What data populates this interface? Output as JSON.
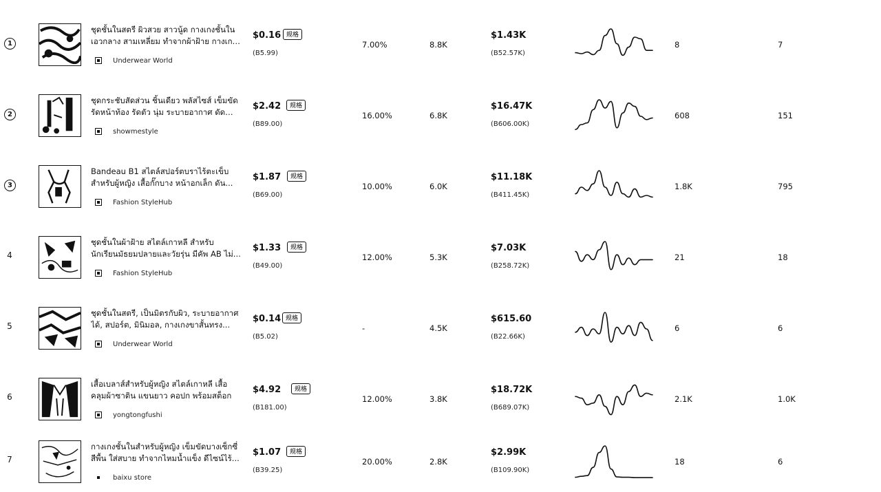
{
  "rows": [
    {
      "rank": "1",
      "title": "ชุดชั้นในสตรี ผิวสวย สาวนู้ด กางเกงชั้นใน เอวกลาง สามเหลี่ยม ทำจากผ้าฝ้าย กางเกงชั้นใน",
      "shop_name": "Underwear World",
      "price": "$0.16",
      "price_badge": "规格",
      "price_local": "(B5.99)",
      "commission_rate": "7.00%",
      "sales": "8.8K",
      "revenue": "$1.43K",
      "revenue_local": "(B52.57K)",
      "metric_a": "8",
      "metric_b": "7",
      "trend": [
        0.28,
        0.25,
        0.3,
        0.22,
        0.35,
        0.8,
        1.0,
        0.55,
        0.2,
        0.45,
        0.75,
        0.7,
        0.35,
        0.35
      ]
    },
    {
      "rank": "2",
      "title": "ชุดกระชับสัดส่วน ชิ้นเดียว พลัสไซส์ เข็มขัด รัดหน้าท้อง รัดตัว นุ่ม ระบายอากาศ ดัดมีดิ...",
      "shop_name": "showmestyle",
      "price": "$2.42",
      "price_badge": "规格",
      "price_local": "(B89.00)",
      "commission_rate": "16.00%",
      "sales": "6.8K",
      "revenue": "$16.47K",
      "revenue_local": "(B606.00K)",
      "metric_a": "608",
      "metric_b": "151",
      "trend": [
        0.1,
        0.25,
        0.3,
        0.7,
        1.0,
        0.75,
        0.95,
        0.15,
        0.6,
        0.9,
        0.8,
        0.5,
        0.4,
        0.45
      ]
    },
    {
      "rank": "3",
      "title": "Bandeau B1 สไตล์สปอร์ตบราไร้ตะเข็บ สำหรับผู้หญิง เสื้อกั๊กบาง หน้าอกเล็ก ดัน...",
      "shop_name": "Fashion StyleHub",
      "price": "$1.87",
      "price_badge": "规格",
      "price_local": "(B69.00)",
      "commission_rate": "10.00%",
      "sales": "6.0K",
      "revenue": "$11.18K",
      "revenue_local": "(B411.45K)",
      "metric_a": "1.8K",
      "metric_b": "795",
      "trend": [
        0.3,
        0.5,
        0.4,
        0.6,
        1.0,
        0.5,
        0.25,
        0.65,
        0.3,
        0.2,
        0.45,
        0.2,
        0.25,
        0.2
      ]
    },
    {
      "rank": "4",
      "title": "ชุดชั้นในผ้าฝ้าย สไตล์เกาหลี สำหรับ นักเรียนมัธยมปลายและวัยรุ่น มีคัพ AB ไม่...",
      "shop_name": "Fashion StyleHub",
      "price": "$1.33",
      "price_badge": "规格",
      "price_local": "(B49.00)",
      "commission_rate": "12.00%",
      "sales": "5.3K",
      "revenue": "$7.03K",
      "revenue_local": "(B258.72K)",
      "metric_a": "21",
      "metric_b": "18",
      "trend": [
        0.7,
        0.4,
        0.6,
        0.45,
        0.75,
        1.0,
        0.15,
        0.6,
        0.3,
        0.5,
        0.3,
        0.45,
        0.45,
        0.45
      ]
    },
    {
      "rank": "5",
      "title": "ชุดชั้นในสตรี, เป็นมิตรกับผิว, ระบายอากาศ ได้, สปอร์ต, มินิมอล, กางเกงขาสั้นทรง...",
      "shop_name": "Underwear World",
      "price": "$0.14",
      "price_badge": "规格",
      "price_local": "(B5.02)",
      "commission_rate": "-",
      "sales": "4.5K",
      "revenue": "$615.60",
      "revenue_local": "(B22.66K)",
      "metric_a": "6",
      "metric_b": "6",
      "trend": [
        0.4,
        0.55,
        0.3,
        0.5,
        0.35,
        1.0,
        0.1,
        0.55,
        0.35,
        0.6,
        0.3,
        0.7,
        0.5,
        0.15
      ]
    },
    {
      "rank": "6",
      "title": "เสื้อเบลาส์สำหรับผู้หญิง สไตล์เกาหลี เสื้อ คลุมผ้าซาติน แขนยาว คอปก พร้อมสต็อก",
      "shop_name": "yongtongfushi",
      "price": "$4.92",
      "price_badge": "规格",
      "price_local": "(B181.00)",
      "commission_rate": "12.00%",
      "sales": "3.8K",
      "revenue": "$18.72K",
      "revenue_local": "(B689.07K)",
      "metric_a": "2.1K",
      "metric_b": "1.0K",
      "trend": [
        0.6,
        0.55,
        0.35,
        0.4,
        0.65,
        0.3,
        0.05,
        0.6,
        0.35,
        0.75,
        0.95,
        0.6,
        0.7,
        0.65
      ]
    },
    {
      "rank": "7",
      "title": "กางเกงชั้นในสำหรับผู้หญิง เข็มขัดบางเซ็กซี่ สีพื้น ใส่สบาย ทำจากไหมน้ำแข็ง ดีไซน์ไร้...",
      "shop_name": "baixu store",
      "price": "$1.07",
      "price_badge": "规格",
      "price_local": "(B39.25)",
      "commission_rate": "20.00%",
      "sales": "2.8K",
      "revenue": "$2.99K",
      "revenue_local": "(B109.90K)",
      "metric_a": "18",
      "metric_b": "6",
      "trend": [
        0.05,
        0.08,
        0.1,
        0.35,
        0.8,
        1.0,
        0.3,
        0.06,
        0.05,
        0.05,
        0.04,
        0.04,
        0.04,
        0.04
      ]
    }
  ]
}
